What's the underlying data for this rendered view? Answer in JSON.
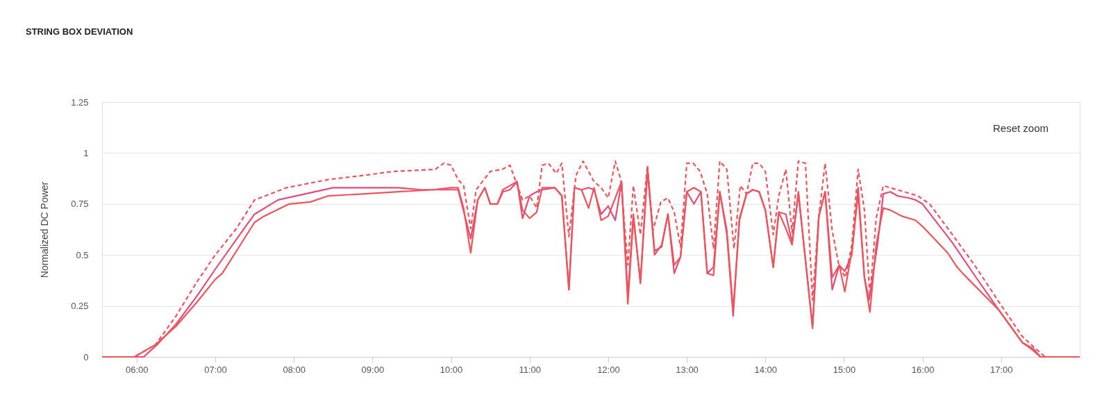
{
  "chart_data": {
    "type": "line",
    "title": "STRING BOX DEVIATION",
    "ylabel": "Normalized DC Power",
    "annotations": [
      "Reset zoom"
    ],
    "xlim": [
      5.56,
      18
    ],
    "xticks": [
      {
        "value": 6,
        "label": "06:00"
      },
      {
        "value": 7,
        "label": "07:00"
      },
      {
        "value": 8,
        "label": "08:00"
      },
      {
        "value": 9,
        "label": "09:00"
      },
      {
        "value": 10,
        "label": "10:00"
      },
      {
        "value": 11,
        "label": "11:00"
      },
      {
        "value": 12,
        "label": "12:00"
      },
      {
        "value": 13,
        "label": "13:00"
      },
      {
        "value": 14,
        "label": "14:00"
      },
      {
        "value": 15,
        "label": "15:00"
      },
      {
        "value": 16,
        "label": "16:00"
      },
      {
        "value": 17,
        "label": "17:00"
      }
    ],
    "ylim": [
      0,
      1.25
    ],
    "yticks": [
      0,
      0.25,
      0.5,
      0.75,
      1,
      1.25
    ],
    "grid": "y",
    "marker": "none",
    "series": [
      {
        "color": "#f0545a",
        "line_style": "dashed",
        "x": [
          5.56,
          5.97,
          6.24,
          6.5,
          6.77,
          7.0,
          7.27,
          7.5,
          7.91,
          8.44,
          8.88,
          9.27,
          9.8,
          9.91,
          10.0,
          10.09,
          10.16,
          10.25,
          10.32,
          10.5,
          10.65,
          10.75,
          10.91,
          11.0,
          11.09,
          11.16,
          11.24,
          11.34,
          11.41,
          11.5,
          11.59,
          11.68,
          11.82,
          11.91,
          12.0,
          12.09,
          12.16,
          12.25,
          12.32,
          12.41,
          12.5,
          12.57,
          12.67,
          12.76,
          12.84,
          12.92,
          13.0,
          13.08,
          13.17,
          13.26,
          13.34,
          13.42,
          13.51,
          13.6,
          13.68,
          13.76,
          13.84,
          13.92,
          14.0,
          14.1,
          14.17,
          14.26,
          14.34,
          14.42,
          14.51,
          14.6,
          14.68,
          14.76,
          14.85,
          14.94,
          15.02,
          15.1,
          15.18,
          15.26,
          15.33,
          15.41,
          15.5,
          15.94,
          16.09,
          16.38,
          16.68,
          16.97,
          17.27,
          17.44,
          17.56,
          18
        ],
        "values": [
          0,
          0,
          0.06,
          0.2,
          0.37,
          0.5,
          0.63,
          0.77,
          0.83,
          0.87,
          0.89,
          0.91,
          0.92,
          0.95,
          0.94,
          0.87,
          0.84,
          0.63,
          0.82,
          0.91,
          0.92,
          0.94,
          0.77,
          0.79,
          0.73,
          0.94,
          0.95,
          0.9,
          0.95,
          0.59,
          0.89,
          0.96,
          0.86,
          0.83,
          0.78,
          0.96,
          0.87,
          0.45,
          0.84,
          0.6,
          0.94,
          0.62,
          0.76,
          0.78,
          0.71,
          0.54,
          0.95,
          0.95,
          0.91,
          0.8,
          0.53,
          0.96,
          0.92,
          0.53,
          0.84,
          0.8,
          0.95,
          0.95,
          0.91,
          0.6,
          0.79,
          0.92,
          0.61,
          0.96,
          0.95,
          0.28,
          0.69,
          0.95,
          0.62,
          0.44,
          0.39,
          0.55,
          0.92,
          0.72,
          0.3,
          0.68,
          0.84,
          0.79,
          0.75,
          0.6,
          0.44,
          0.27,
          0.1,
          0.04,
          0,
          0
        ]
      },
      {
        "color": "#e84a78",
        "line_style": "solid",
        "x": [
          5.56,
          6.09,
          6.26,
          6.5,
          6.77,
          7.0,
          7.35,
          7.5,
          7.8,
          8.27,
          8.5,
          8.97,
          9.33,
          9.62,
          10.0,
          10.09,
          10.25,
          10.34,
          10.43,
          10.5,
          10.59,
          10.66,
          10.75,
          10.84,
          10.91,
          11.0,
          11.09,
          11.16,
          11.32,
          11.41,
          11.5,
          11.57,
          11.66,
          11.75,
          11.82,
          11.91,
          12.0,
          12.09,
          12.17,
          12.25,
          12.32,
          12.41,
          12.5,
          12.59,
          12.68,
          12.76,
          12.84,
          12.92,
          13.0,
          13.09,
          13.18,
          13.26,
          13.34,
          13.42,
          13.51,
          13.59,
          13.67,
          13.76,
          13.84,
          13.92,
          14.0,
          14.1,
          14.17,
          14.26,
          14.34,
          14.42,
          14.6,
          14.68,
          14.76,
          14.85,
          14.94,
          15.01,
          15.1,
          15.18,
          15.26,
          15.32,
          15.43,
          15.5,
          15.59,
          15.68,
          15.82,
          15.91,
          16.0,
          16.38,
          16.68,
          16.97,
          17.27,
          17.41,
          17.5,
          18
        ],
        "values": [
          0,
          0,
          0.06,
          0.16,
          0.3,
          0.43,
          0.62,
          0.7,
          0.77,
          0.81,
          0.83,
          0.83,
          0.83,
          0.82,
          0.82,
          0.82,
          0.58,
          0.77,
          0.83,
          0.75,
          0.75,
          0.81,
          0.82,
          0.86,
          0.68,
          0.79,
          0.81,
          0.82,
          0.83,
          0.79,
          0.33,
          0.83,
          0.82,
          0.83,
          0.82,
          0.7,
          0.74,
          0.67,
          0.86,
          0.3,
          0.7,
          0.36,
          0.92,
          0.52,
          0.54,
          0.7,
          0.41,
          0.49,
          0.81,
          0.75,
          0.81,
          0.41,
          0.44,
          0.81,
          0.6,
          0.2,
          0.68,
          0.8,
          0.82,
          0.81,
          0.72,
          0.44,
          0.71,
          0.7,
          0.56,
          0.8,
          0.15,
          0.69,
          0.81,
          0.33,
          0.45,
          0.42,
          0.5,
          0.83,
          0.39,
          0.28,
          0.56,
          0.8,
          0.81,
          0.79,
          0.78,
          0.77,
          0.75,
          0.56,
          0.39,
          0.23,
          0.07,
          0.04,
          0,
          0
        ]
      },
      {
        "color": "#f0545a",
        "line_style": "solid",
        "x": [
          5.56,
          5.97,
          6.24,
          6.5,
          6.77,
          7.0,
          7.09,
          7.32,
          7.5,
          7.62,
          7.94,
          8.21,
          8.44,
          8.91,
          9.33,
          9.77,
          10.0,
          10.09,
          10.16,
          10.25,
          10.34,
          10.43,
          10.5,
          10.59,
          10.66,
          10.75,
          10.84,
          10.91,
          11.0,
          11.09,
          11.16,
          11.32,
          11.41,
          11.5,
          11.57,
          11.66,
          11.75,
          11.82,
          11.91,
          12.0,
          12.09,
          12.17,
          12.25,
          12.32,
          12.41,
          12.5,
          12.59,
          12.68,
          12.76,
          12.84,
          12.92,
          13.0,
          13.09,
          13.18,
          13.26,
          13.34,
          13.42,
          13.51,
          13.59,
          13.67,
          13.76,
          13.84,
          13.92,
          14.0,
          14.1,
          14.17,
          14.26,
          14.34,
          14.42,
          14.6,
          14.68,
          14.76,
          14.85,
          14.94,
          15.01,
          15.1,
          15.18,
          15.26,
          15.33,
          15.41,
          15.5,
          15.59,
          15.74,
          15.91,
          16.0,
          16.32,
          16.44,
          16.51,
          16.97,
          17.27,
          17.38,
          17.5,
          18
        ],
        "values": [
          0,
          0,
          0.06,
          0.15,
          0.27,
          0.38,
          0.41,
          0.55,
          0.66,
          0.69,
          0.75,
          0.76,
          0.79,
          0.8,
          0.81,
          0.82,
          0.83,
          0.83,
          0.73,
          0.51,
          0.77,
          0.83,
          0.75,
          0.75,
          0.82,
          0.84,
          0.86,
          0.72,
          0.68,
          0.71,
          0.83,
          0.83,
          0.79,
          0.33,
          0.83,
          0.82,
          0.73,
          0.83,
          0.67,
          0.69,
          0.78,
          0.86,
          0.26,
          0.68,
          0.37,
          0.92,
          0.5,
          0.55,
          0.7,
          0.45,
          0.49,
          0.81,
          0.83,
          0.81,
          0.41,
          0.4,
          0.81,
          0.62,
          0.23,
          0.67,
          0.8,
          0.82,
          0.81,
          0.72,
          0.44,
          0.71,
          0.63,
          0.55,
          0.81,
          0.14,
          0.69,
          0.81,
          0.39,
          0.45,
          0.32,
          0.52,
          0.8,
          0.39,
          0.22,
          0.55,
          0.73,
          0.72,
          0.69,
          0.67,
          0.64,
          0.51,
          0.44,
          0.41,
          0.23,
          0.07,
          0.04,
          0,
          0
        ]
      }
    ]
  }
}
